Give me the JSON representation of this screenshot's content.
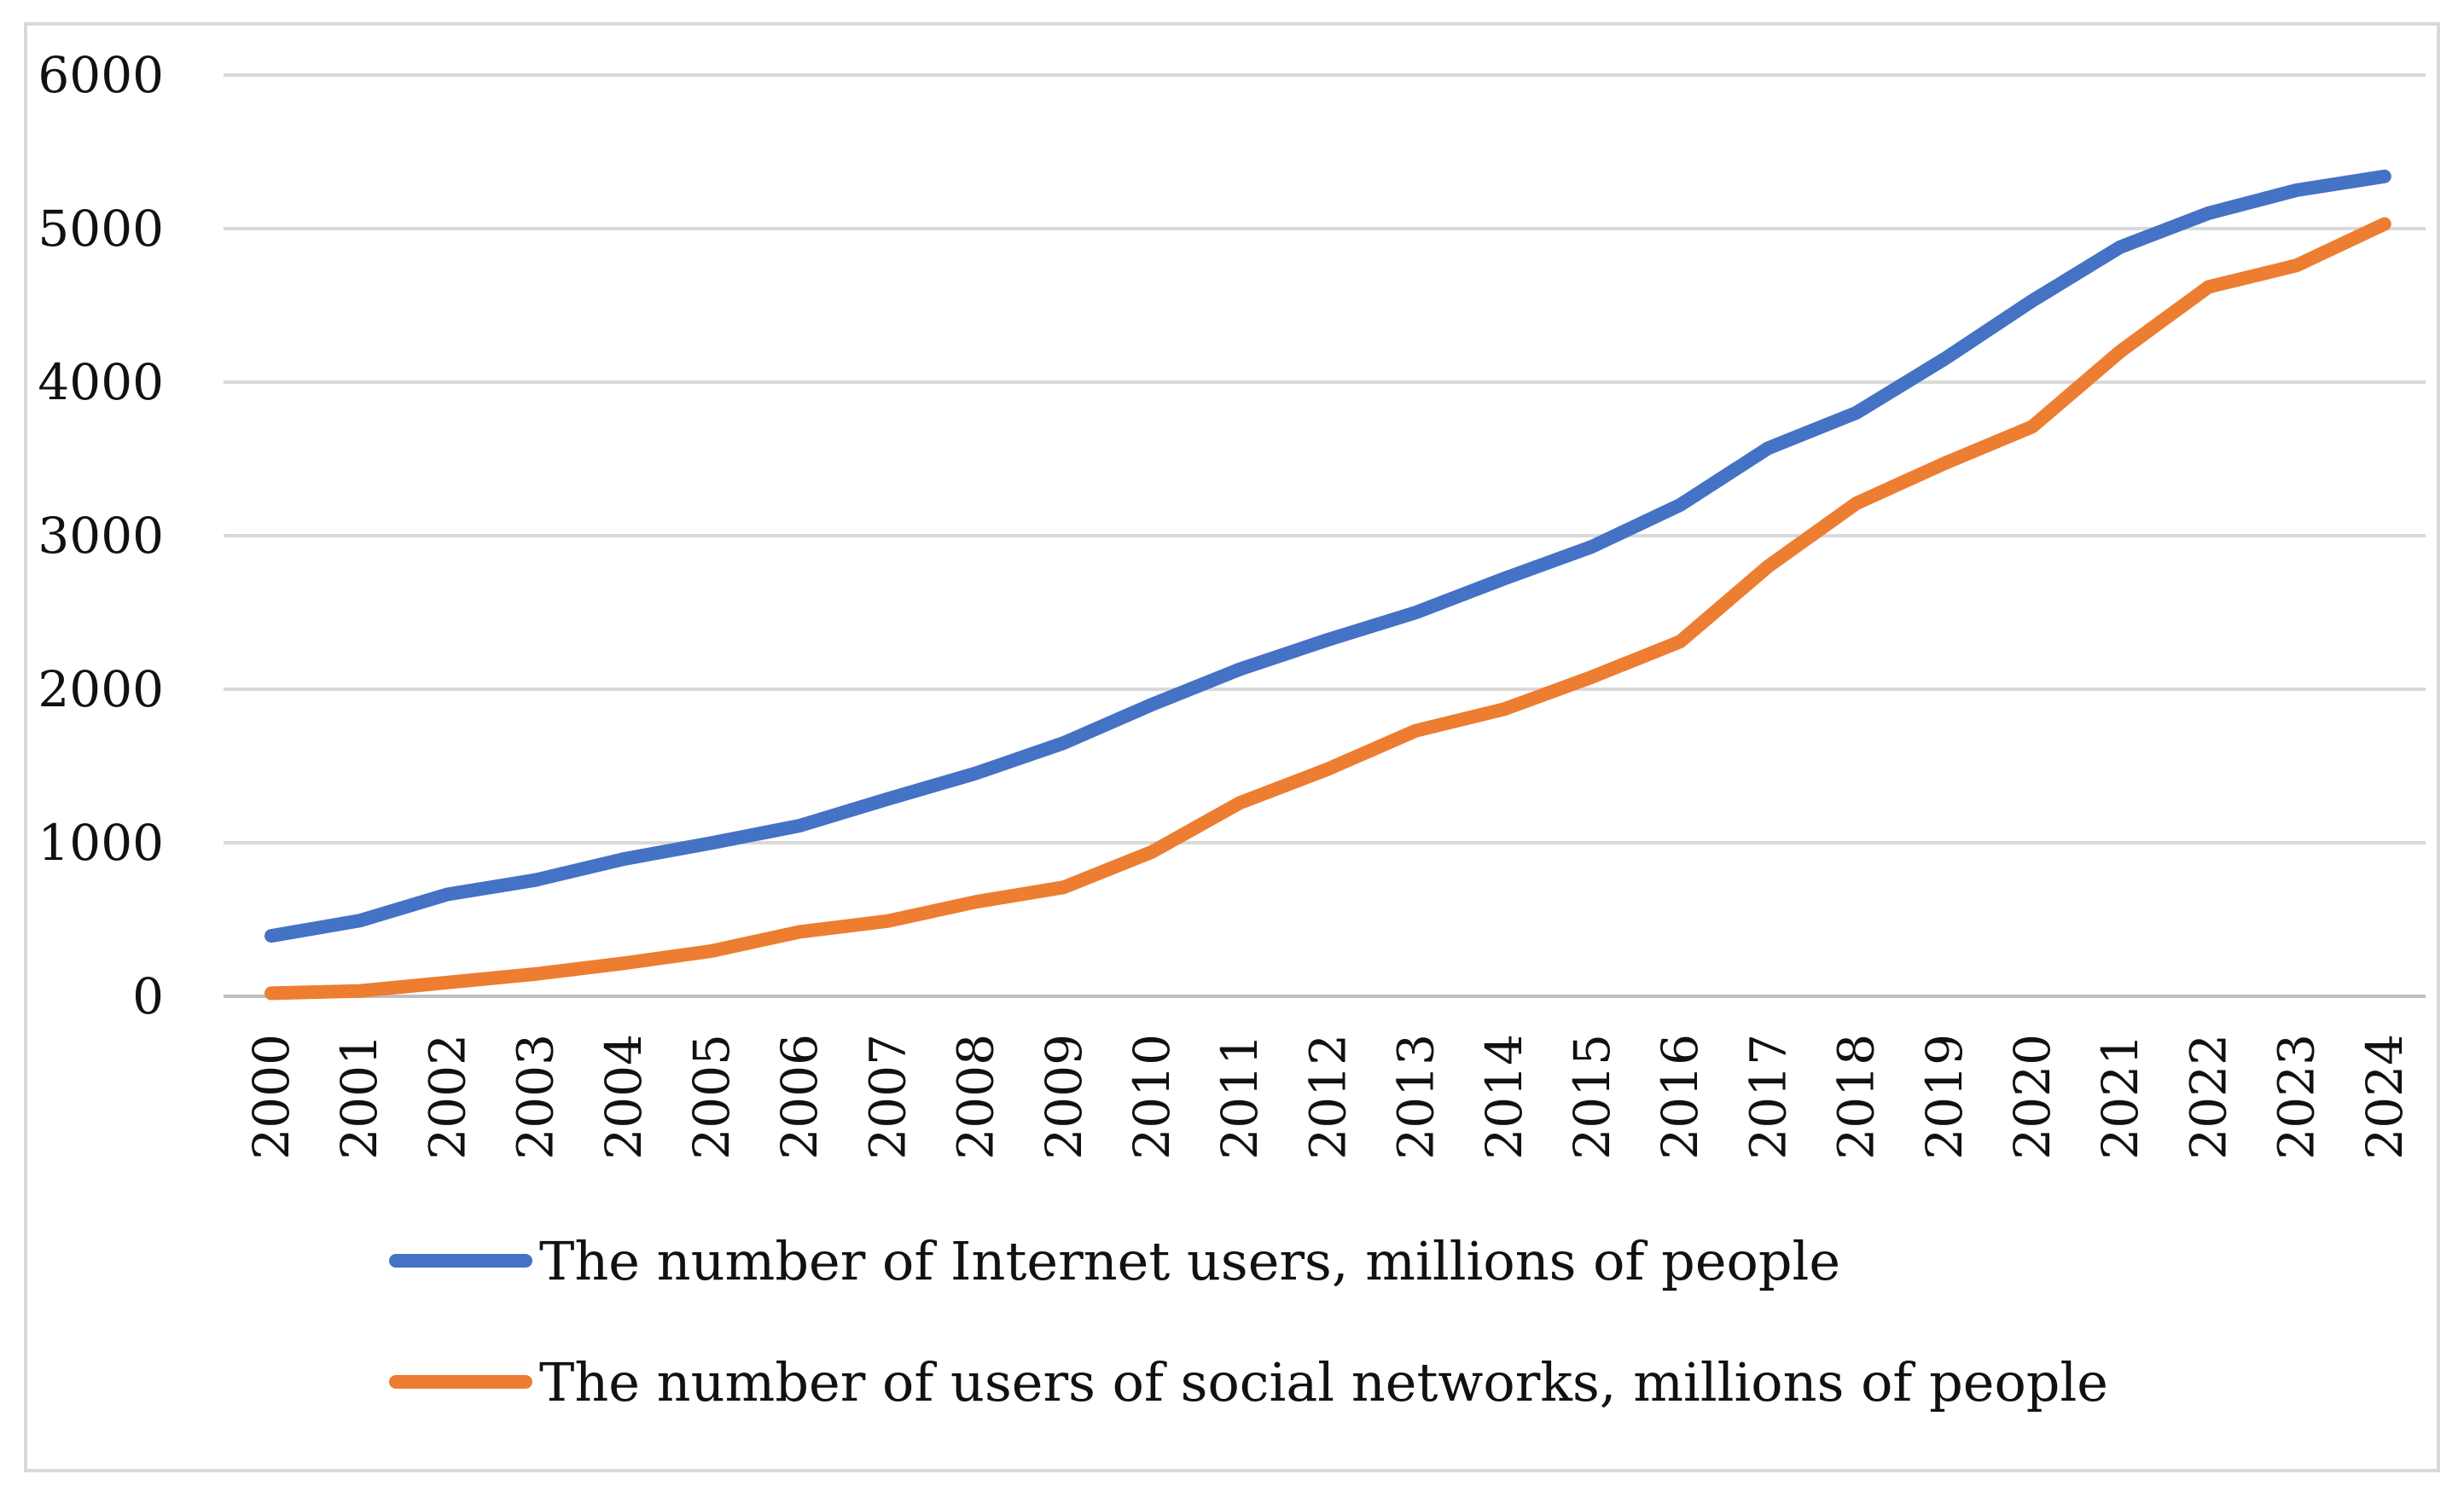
{
  "chart_data": {
    "type": "line",
    "title": "",
    "xlabel": "",
    "ylabel": "",
    "ylim": [
      0,
      6000
    ],
    "yticks": [
      0,
      1000,
      2000,
      3000,
      4000,
      5000,
      6000
    ],
    "grid": true,
    "legend_position": "bottom",
    "categories": [
      "2000",
      "2001",
      "2002",
      "2003",
      "2004",
      "2005",
      "2006",
      "2007",
      "2008",
      "2009",
      "2010",
      "2011",
      "2012",
      "2013",
      "2014",
      "2015",
      "2016",
      "2017",
      "2018",
      "2019",
      "2020",
      "2021",
      "2022",
      "2023",
      "2024"
    ],
    "series": [
      {
        "name": "The number of Internet users, millions of people",
        "color": "#4472C4",
        "values": [
          394,
          492,
          664,
          757,
          894,
          999,
          1111,
          1285,
          1452,
          1650,
          1900,
          2130,
          2322,
          2500,
          2720,
          2929,
          3200,
          3570,
          3800,
          4150,
          4530,
          4880,
          5100,
          5250,
          5340
        ]
      },
      {
        "name": "The number of users of social networks, millions of people",
        "color": "#ED7D31",
        "values": [
          20,
          35,
          90,
          145,
          215,
          295,
          420,
          490,
          615,
          710,
          940,
          1260,
          1480,
          1730,
          1870,
          2080,
          2310,
          2800,
          3210,
          3470,
          3710,
          4200,
          4620,
          4760,
          5030
        ]
      }
    ]
  }
}
